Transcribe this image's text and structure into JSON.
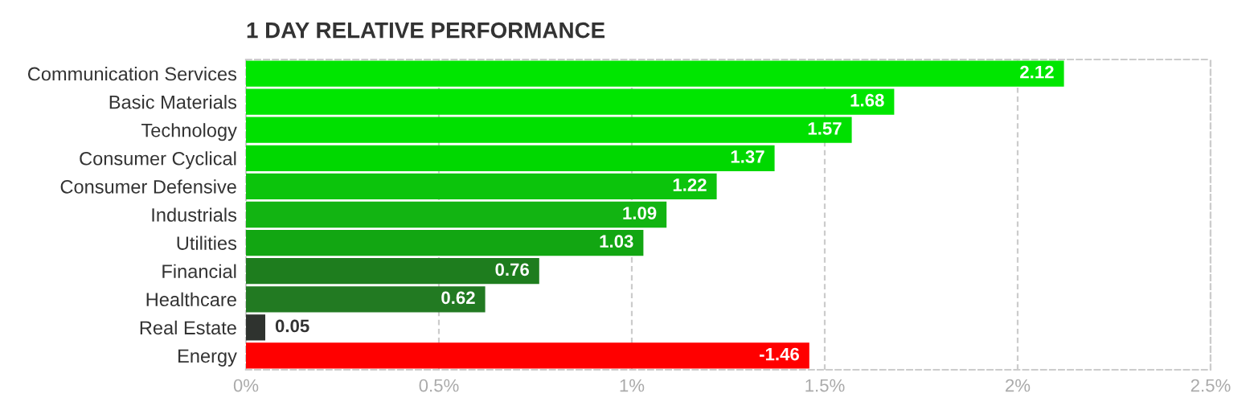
{
  "chart_data": {
    "type": "bar",
    "orientation": "horizontal",
    "title": "1 DAY RELATIVE PERFORMANCE",
    "categories": [
      "Communication Services",
      "Basic Materials",
      "Technology",
      "Consumer Cyclical",
      "Consumer Defensive",
      "Industrials",
      "Utilities",
      "Financial",
      "Healthcare",
      "Real Estate",
      "Energy"
    ],
    "values": [
      2.12,
      1.68,
      1.57,
      1.37,
      1.22,
      1.09,
      1.03,
      0.76,
      0.62,
      0.05,
      -1.46
    ],
    "base": [
      0,
      0,
      0,
      0,
      0,
      0,
      0,
      0,
      0,
      0,
      1.46
    ],
    "colors": [
      "#00e600",
      "#00e600",
      "#00e000",
      "#00d800",
      "#0cc40c",
      "#12b412",
      "#12a612",
      "#1e7d1e",
      "#227a22",
      "#2f332f",
      "#ff0000"
    ],
    "xlim": [
      0,
      2.5
    ],
    "xticks": [
      {
        "value": 0,
        "label": "0%"
      },
      {
        "value": 0.5,
        "label": "0.5%"
      },
      {
        "value": 1,
        "label": "1%"
      },
      {
        "value": 1.5,
        "label": "1.5%"
      },
      {
        "value": 2,
        "label": "2%"
      },
      {
        "value": 2.5,
        "label": "2.5%"
      }
    ],
    "grid": true,
    "data_labels": true
  }
}
